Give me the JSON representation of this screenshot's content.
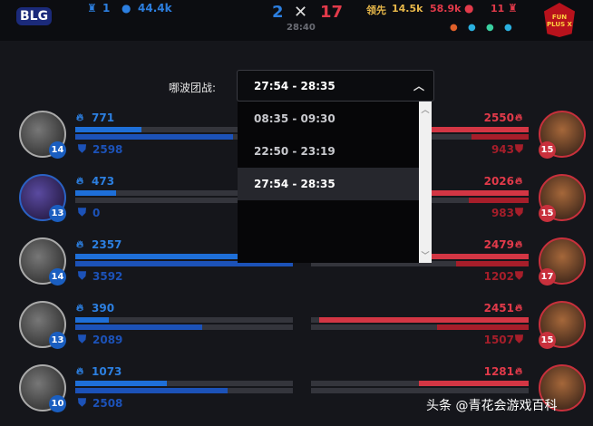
{
  "header": {
    "blue_logo": "BLG",
    "red_logo": "FUN PLUS X",
    "blue_towers": "1",
    "blue_gold": "44.4k",
    "blue_kills": "2",
    "red_kills": "17",
    "game_time": "28:40",
    "lead_label": "领先",
    "lead_value": "14.5k",
    "red_gold": "58.9k",
    "red_towers": "11",
    "red_dragons": [
      "infernal",
      "ocean",
      "cloud",
      "ocean"
    ]
  },
  "teamfight": {
    "label": "哪波团战:",
    "selected": "27:54 - 28:35",
    "options": [
      "08:35 - 09:30",
      "22:50 - 23:19",
      "27:54 - 28:35"
    ]
  },
  "colors": {
    "blue": "#1e6fd8",
    "red": "#d33644"
  },
  "scale": {
    "damage_max": 2550,
    "taken_max": 3592
  },
  "blue_players": [
    {
      "level": "14",
      "damage": "771",
      "taken": "2598"
    },
    {
      "level": "13",
      "damage": "473",
      "taken": "0"
    },
    {
      "level": "14",
      "damage": "2357",
      "taken": "3592"
    },
    {
      "level": "13",
      "damage": "390",
      "taken": "2089"
    },
    {
      "level": "10",
      "damage": "1073",
      "taken": "2508"
    }
  ],
  "red_players": [
    {
      "level": "15",
      "damage": "2550",
      "taken": "943"
    },
    {
      "level": "15",
      "damage": "2026",
      "taken": "983"
    },
    {
      "level": "17",
      "damage": "2479",
      "taken": "1202"
    },
    {
      "level": "15",
      "damage": "2451",
      "taken": "1507"
    },
    {
      "level": "",
      "damage": "1281",
      "taken": ""
    }
  ],
  "watermark": "头条 @青花会游戏百科"
}
